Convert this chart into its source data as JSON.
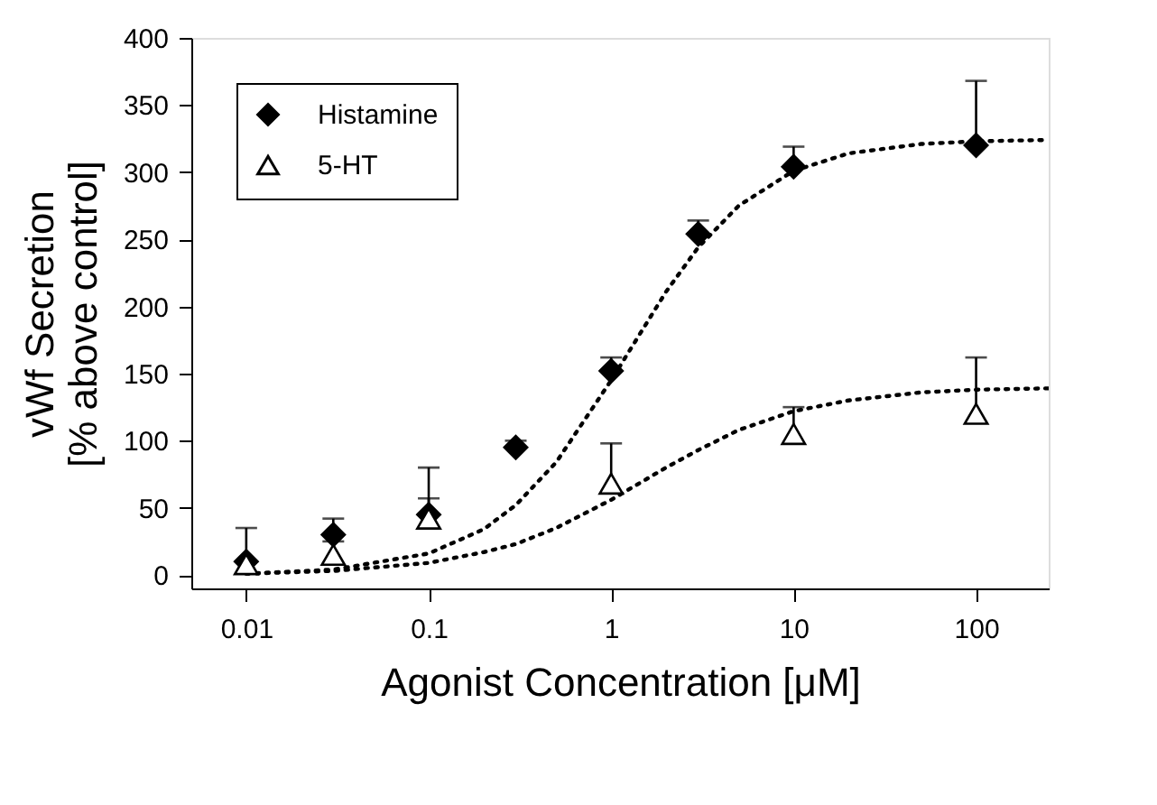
{
  "chart_data": {
    "type": "scatter",
    "xlabel": "Agonist Concentration [μM]",
    "ylabel": "vWf Secretion\n[% above control]",
    "log": "x",
    "xlim": [
      0.005,
      250
    ],
    "xticks": [
      0.01,
      0.1,
      1,
      10,
      100
    ],
    "ylim": [
      -10,
      400
    ],
    "yticks": [
      0,
      50,
      100,
      150,
      200,
      250,
      300,
      350,
      400
    ],
    "grid": false,
    "legend": "top left",
    "series": [
      {
        "name": "Histamine",
        "color": "#000000",
        "marker": "diamond",
        "x": [
          0.01,
          0.03,
          0.1,
          0.3,
          1,
          3,
          10,
          100
        ],
        "values": [
          10,
          30,
          45,
          95,
          152,
          254,
          304,
          320
        ],
        "errors": [
          [
            10,
            35
          ],
          [
            30,
            42
          ],
          [
            45,
            80
          ],
          [
            95,
            100
          ],
          [
            152,
            162
          ],
          [
            254,
            264
          ],
          [
            304,
            319
          ],
          [
            320,
            368
          ]
        ]
      },
      {
        "name": "5-HT",
        "color": "#000000",
        "marker": "triangle",
        "x": [
          0.01,
          0.03,
          0.1,
          1,
          10,
          100
        ],
        "values": [
          8,
          15,
          42,
          68,
          105,
          120
        ],
        "errors": [
          [
            8,
            8
          ],
          [
            15,
            25
          ],
          [
            42,
            57
          ],
          [
            68,
            98
          ],
          [
            105,
            125
          ],
          [
            120,
            162
          ]
        ]
      },
      {
        "type": "line",
        "color": "#000000",
        "line_style": "dotted",
        "x": [
          0.01,
          0.03,
          0.1,
          0.2,
          0.3,
          0.5,
          1,
          2,
          3,
          5,
          10,
          20,
          50,
          100,
          250
        ],
        "values": [
          1,
          4,
          16,
          34,
          52,
          84,
          145,
          211,
          244,
          275,
          301,
          314,
          321,
          323,
          324
        ]
      },
      {
        "type": "line",
        "color": "#000000",
        "line_style": "dotted",
        "x": [
          0.01,
          0.03,
          0.1,
          0.2,
          0.3,
          0.5,
          1,
          2,
          3,
          5,
          10,
          20,
          50,
          100,
          250
        ],
        "values": [
          1,
          3,
          9,
          17,
          23,
          35,
          56,
          80,
          93,
          108,
          122,
          130,
          136,
          138,
          139
        ]
      }
    ]
  }
}
